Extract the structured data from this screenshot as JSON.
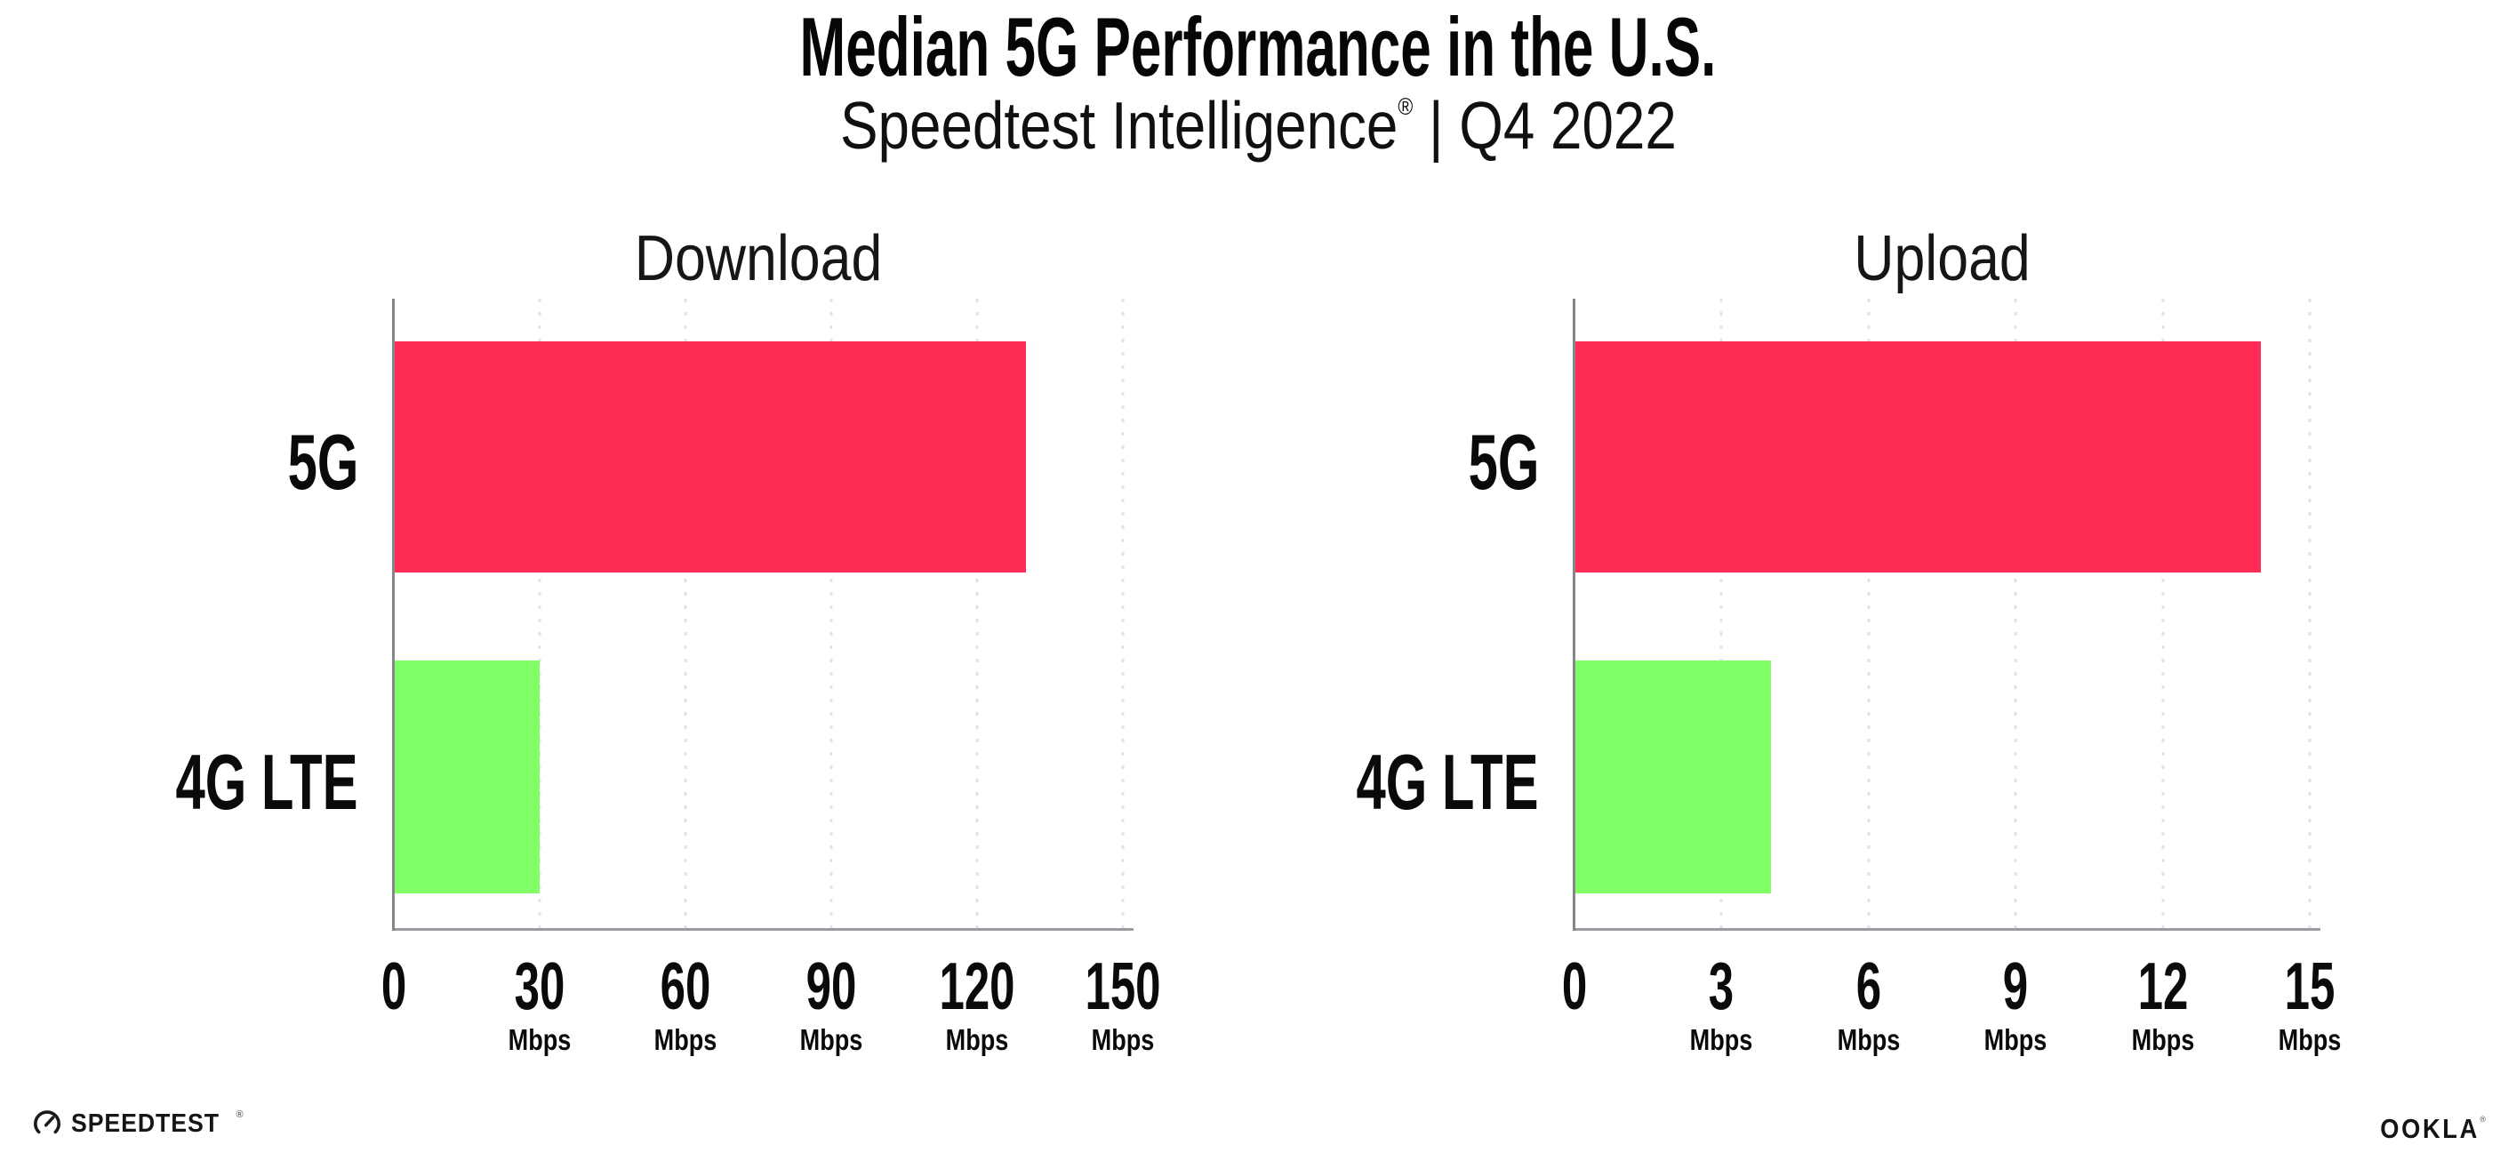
{
  "header": {
    "title": "Median 5G Performance in the U.S.",
    "subtitle_brand": "Speedtest Intelligence",
    "subtitle_reg": "®",
    "subtitle_rest": " | Q4 2022"
  },
  "chart_data": [
    {
      "type": "bar",
      "orientation": "horizontal",
      "title": "Download",
      "categories": [
        "5G",
        "4G LTE"
      ],
      "values": [
        130,
        30
      ],
      "unit": "Mbps",
      "xlim": [
        0,
        150
      ],
      "xticks": [
        0,
        30,
        60,
        90,
        120,
        150
      ],
      "series_colors": [
        "#FF2D55",
        "#80FF66"
      ],
      "grid": "vertical-dotted",
      "legend": "none"
    },
    {
      "type": "bar",
      "orientation": "horizontal",
      "title": "Upload",
      "categories": [
        "5G",
        "4G LTE"
      ],
      "values": [
        14,
        4
      ],
      "unit": "Mbps",
      "xlim": [
        0,
        15
      ],
      "xticks": [
        0,
        3,
        6,
        9,
        12,
        15
      ],
      "series_colors": [
        "#FF2D55",
        "#80FF66"
      ],
      "grid": "vertical-dotted",
      "legend": "none"
    }
  ],
  "footer": {
    "speedtest_label": "SPEEDTEST",
    "speedtest_reg": "®",
    "ookla_label": "OOKLA",
    "ookla_reg": "®"
  },
  "colors": {
    "bar_5g": "#FF2D55",
    "bar_4g_lte": "#80FF66",
    "y_axis_line": "#85858c",
    "x_axis_line": "#9b9ba3",
    "gridline_dots": "#e2e2ec",
    "text": "#0b0b0b",
    "background": "#ffffff"
  }
}
